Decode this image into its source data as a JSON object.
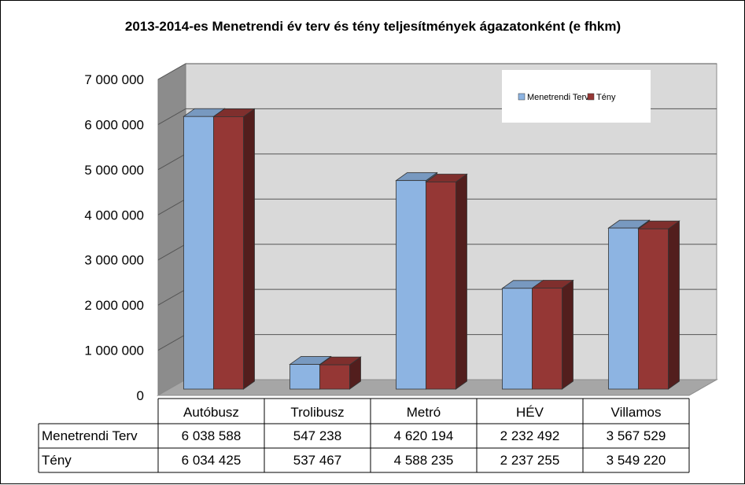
{
  "chart_data": {
    "type": "bar",
    "title": "2013-2014-es Menetrendi év terv és tény teljesítmények ágazatonként (e fhkm)",
    "categories": [
      "Autóbusz",
      "Trolibusz",
      "Metró",
      "HÉV",
      "Villamos"
    ],
    "series": [
      {
        "name": "Menetrendi Terv",
        "values": [
          6038588,
          547238,
          4620194,
          2232492,
          3567529
        ],
        "display": [
          "6 038 588",
          "547 238",
          "4 620 194",
          "2 232 492",
          "3 567 529"
        ],
        "color": "#8DB4E2"
      },
      {
        "name": "Tény",
        "values": [
          6034425,
          537467,
          4588235,
          2237255,
          3549220
        ],
        "display": [
          "6 034 425",
          "537 467",
          "4 588 235",
          "2 237 255",
          "3 549 220"
        ],
        "color": "#953735"
      }
    ],
    "yticks": [
      "0",
      "1 000 000",
      "2 000 000",
      "3 000 000",
      "4 000 000",
      "5 000 000",
      "6 000 000",
      "7 000 000"
    ],
    "ylim": [
      0,
      7000000
    ],
    "grid": true,
    "legend_position": "top-right",
    "data_table": true
  }
}
